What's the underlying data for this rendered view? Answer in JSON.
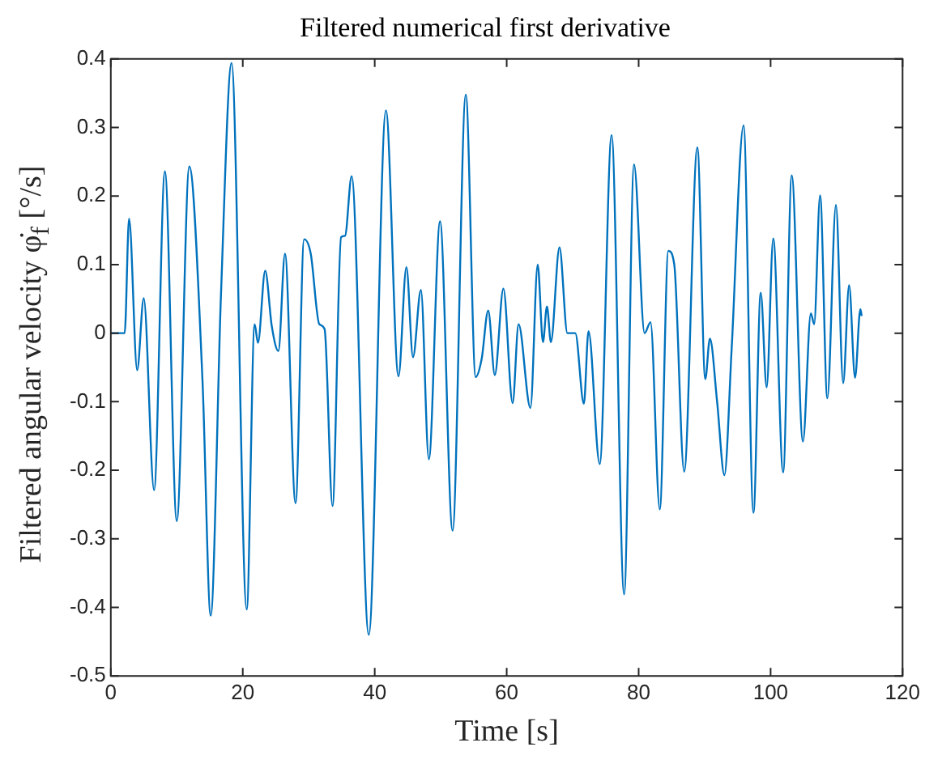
{
  "chart_data": {
    "type": "line",
    "title": "Filtered numerical first derivative",
    "xlabel": "Time [s]",
    "ylabel": "Filtered angular velocity φ̇$_{f}$ [°/s]",
    "x": [
      0,
      2.1,
      2.77,
      4.0,
      4.99,
      6.56,
      8.2,
      10.0,
      11.9,
      13.9,
      15.14,
      16.7,
      18.3,
      20.6,
      21.8,
      22.3,
      23.4,
      24.4,
      25.4,
      26.4,
      28.0,
      29.3,
      30.3,
      31.6,
      32.4,
      33.6,
      34.9,
      35.5,
      36.5,
      39.1,
      41.7,
      43.6,
      44.8,
      45.8,
      47.0,
      48.2,
      49.9,
      51.8,
      53.8,
      55.3,
      56.2,
      57.2,
      58.2,
      59.5,
      60.9,
      61.8,
      63.6,
      64.7,
      65.5,
      66.1,
      66.7,
      68.0,
      69.2,
      70.4,
      71.7,
      72.4,
      74.1,
      75.9,
      77.8,
      79.3,
      80.9,
      81.8,
      83.2,
      84.5,
      85.4,
      86.9,
      88.9,
      90.1,
      90.8,
      91.9,
      93.0,
      94.1,
      95.9,
      97.4,
      98.5,
      99.4,
      100.4,
      101.9,
      103.2,
      104.9,
      106.1,
      106.6,
      107.5,
      108.6,
      109.9,
      111.0,
      111.9,
      112.8,
      113.6,
      113.8
    ],
    "series": [
      {
        "color": "#0072bd",
        "values": [
          0,
          0,
          0.167,
          -0.054,
          0.051,
          -0.229,
          0.236,
          -0.274,
          0.243,
          -0.07,
          -0.412,
          0.057,
          0.394,
          -0.403,
          0.013,
          -0.014,
          0.091,
          0.01,
          -0.026,
          0.116,
          -0.248,
          0.137,
          0.116,
          0.013,
          0.006,
          -0.252,
          0.14,
          0.142,
          0.229,
          -0.44,
          0.325,
          -0.063,
          0.096,
          -0.035,
          0.063,
          -0.184,
          0.163,
          -0.288,
          0.348,
          -0.064,
          -0.038,
          0.033,
          -0.061,
          0.065,
          -0.102,
          0.013,
          -0.109,
          0.1,
          -0.013,
          0.039,
          -0.013,
          0.125,
          0,
          0,
          -0.103,
          0.003,
          -0.191,
          0.289,
          -0.381,
          0.246,
          0,
          0.016,
          -0.257,
          0.12,
          0.1,
          -0.202,
          0.271,
          -0.067,
          -0.008,
          -0.101,
          -0.207,
          -0.022,
          0.303,
          -0.262,
          0.059,
          -0.079,
          0.138,
          -0.203,
          0.23,
          -0.158,
          0.029,
          0.013,
          0.201,
          -0.095,
          0.187,
          -0.073,
          0.07,
          -0.065,
          0.035,
          0.025
        ]
      }
    ],
    "xlim": [
      0,
      120
    ],
    "xticks": [
      0,
      20,
      40,
      60,
      80,
      100,
      120
    ],
    "ylim": [
      -0.5,
      0.4
    ],
    "yticks": [
      -0.5,
      -0.4,
      -0.3,
      -0.2,
      -0.1,
      0,
      0.1,
      0.2,
      0.3,
      0.4
    ],
    "grid": false,
    "legend": false,
    "marker": "none",
    "line_style": "solid"
  }
}
